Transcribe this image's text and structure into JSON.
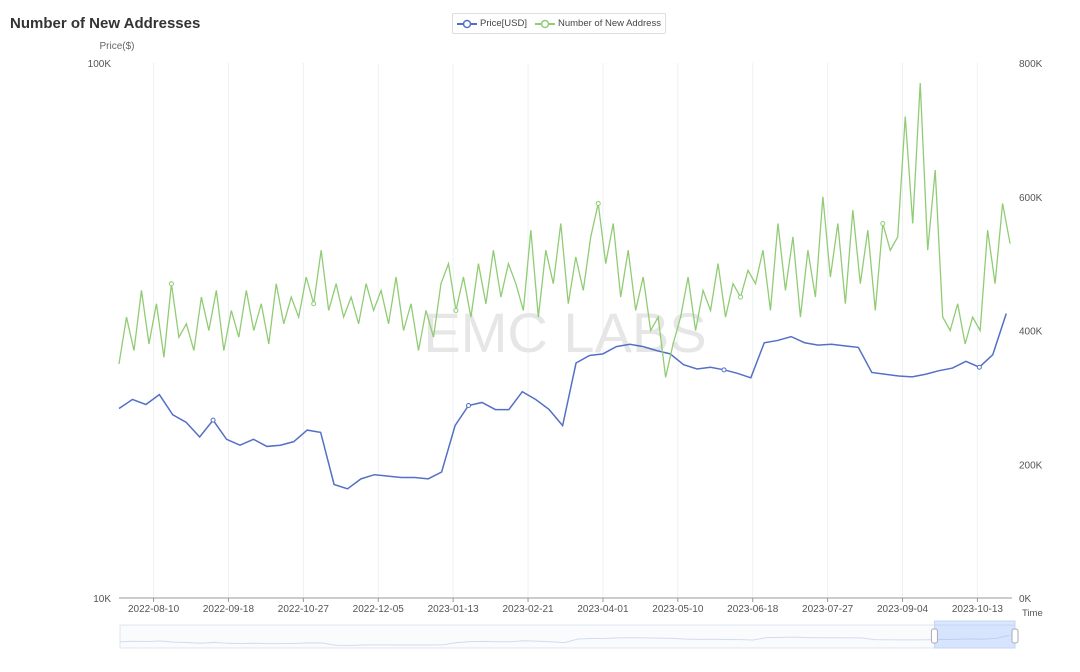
{
  "chart_data": {
    "type": "line",
    "title": "Number of New Addresses",
    "watermark": "EMC LABS",
    "legend": {
      "placement": "top-center",
      "entries": [
        "Price[USD]",
        "Number of New Address"
      ]
    },
    "x_axis": {
      "name": "Time",
      "type": "time",
      "range": [
        "2022-07-23",
        "2023-10-31"
      ],
      "ticks": [
        "2022-08-10",
        "2022-09-18",
        "2022-10-27",
        "2022-12-05",
        "2023-01-13",
        "2023-02-21",
        "2023-04-01",
        "2023-05-10",
        "2023-06-18",
        "2023-07-27",
        "2023-09-04",
        "2023-10-13"
      ],
      "grid": true
    },
    "y_left": {
      "name": "Price($)",
      "scale": "log",
      "range": [
        10000,
        100000
      ],
      "ticks": [
        {
          "v": 10000,
          "label": "10K"
        },
        {
          "v": 100000,
          "label": "100K"
        }
      ]
    },
    "y_right": {
      "scale": "linear",
      "range": [
        0,
        800000
      ],
      "ticks": [
        {
          "v": 0,
          "label": "0K"
        },
        {
          "v": 200000,
          "label": "200K"
        },
        {
          "v": 400000,
          "label": "400K"
        },
        {
          "v": 600000,
          "label": "600K"
        },
        {
          "v": 800000,
          "label": "800K"
        }
      ]
    },
    "series": [
      {
        "name": "Price[USD]",
        "axis": "left",
        "color": "#5470c6",
        "start": "2022-07-23",
        "step_days": 7,
        "unit": "K USD",
        "values": [
          22.6,
          23.5,
          23.0,
          24.0,
          22.0,
          21.3,
          20.0,
          21.5,
          19.8,
          19.3,
          19.8,
          19.2,
          19.3,
          19.6,
          20.6,
          20.4,
          16.3,
          16.0,
          16.7,
          17.0,
          16.9,
          16.8,
          16.8,
          16.7,
          17.2,
          21.0,
          22.9,
          23.2,
          22.5,
          22.5,
          24.3,
          23.5,
          22.5,
          21.0,
          27.5,
          28.4,
          28.6,
          29.5,
          29.8,
          29.5,
          29.0,
          28.6,
          27.3,
          26.8,
          27.0,
          26.7,
          26.3,
          25.8,
          30.0,
          30.3,
          30.8,
          30.0,
          29.7,
          29.8,
          29.6,
          29.4,
          26.4,
          26.2,
          26.0,
          25.9,
          26.2,
          26.6,
          26.9,
          27.7,
          27.0,
          28.5,
          34.0
        ]
      },
      {
        "name": "Number of New Address",
        "axis": "right",
        "color": "#91cc75",
        "start": "2022-07-23",
        "end": "2023-10-30",
        "unit": "K",
        "values": [
          350,
          420,
          370,
          460,
          380,
          440,
          360,
          470,
          390,
          410,
          370,
          450,
          400,
          460,
          370,
          430,
          390,
          460,
          400,
          440,
          380,
          470,
          410,
          450,
          420,
          480,
          440,
          520,
          430,
          470,
          420,
          450,
          410,
          470,
          430,
          460,
          410,
          480,
          400,
          440,
          370,
          430,
          390,
          470,
          500,
          430,
          480,
          420,
          500,
          440,
          520,
          450,
          500,
          470,
          430,
          550,
          420,
          520,
          470,
          560,
          440,
          510,
          460,
          540,
          590,
          500,
          560,
          450,
          520,
          430,
          480,
          400,
          420,
          330,
          380,
          420,
          480,
          400,
          460,
          430,
          500,
          420,
          470,
          450,
          490,
          470,
          520,
          430,
          560,
          460,
          540,
          420,
          520,
          450,
          600,
          480,
          560,
          440,
          580,
          470,
          550,
          430,
          560,
          520,
          540,
          720,
          560,
          770,
          520,
          640,
          420,
          400,
          440,
          380,
          420,
          400,
          550,
          470,
          590,
          530
        ]
      }
    ],
    "data_zoom": {
      "window_start_fraction": 0.91,
      "window_end_fraction": 1.0
    }
  }
}
